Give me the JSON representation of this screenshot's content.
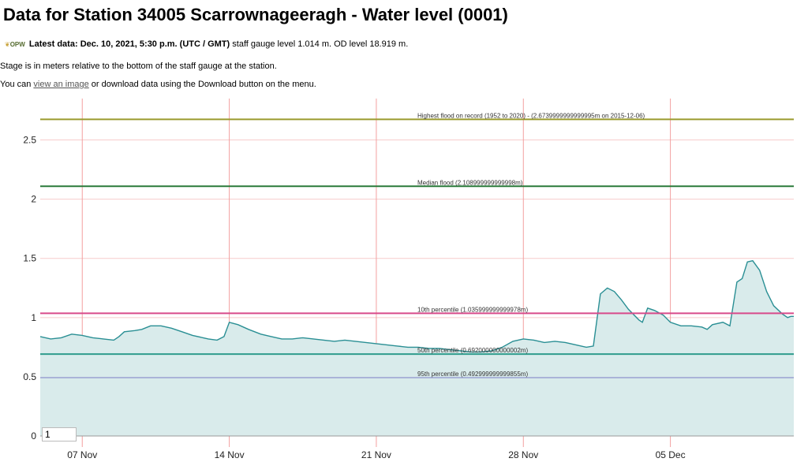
{
  "page": {
    "title": "Data for Station 34005 Scarrownageeragh - Water level (0001)",
    "logo_text": "OPW",
    "latest_label": "Latest data:",
    "latest_time": "Dec. 10, 2021, 5:30 p.m. (UTC / GMT)",
    "latest_rest": "staff gauge level 1.014 m. OD level 18.919 m.",
    "stage_note": "Stage is in meters relative to the bottom of the staff gauge at the station.",
    "download_prefix": "You can ",
    "download_link": "view an image",
    "download_suffix": " or download data using the Download button on the menu.",
    "range_input_value": "1"
  },
  "colors": {
    "series_line": "#2a8f94",
    "series_fill": "#d9ebeb",
    "highest_flood": "#9a9a2e",
    "median_flood": "#2a7a3a",
    "p10": "#d84a8a",
    "p50": "#2f9c8c",
    "p95": "#aab4d8",
    "grid_vertical": "#f2a0a0",
    "grid_horizontal": "#f7cccc"
  },
  "chart_data": {
    "type": "area",
    "x_start": "2021-11-05",
    "x_end": "2021-12-10T21:00",
    "xticks": [
      {
        "label": "07 Nov",
        "x": "2021-11-07"
      },
      {
        "label": "14 Nov",
        "x": "2021-11-14"
      },
      {
        "label": "21 Nov",
        "x": "2021-11-21"
      },
      {
        "label": "28 Nov",
        "x": "2021-11-28"
      },
      {
        "label": "05 Dec",
        "x": "2021-12-05"
      }
    ],
    "ylim": [
      0,
      2.85
    ],
    "yticks": [
      0,
      0.5,
      1,
      1.5,
      2,
      2.5
    ],
    "ytick_labels": [
      "0",
      "0.5",
      "1",
      "1.5",
      "2",
      "2.5"
    ],
    "grid": true,
    "thresholds": [
      {
        "label": "Highest flood on record (1952 to 2020) - (2.6739999999999995m on 2015-12-06)",
        "value": 2.674,
        "color_key": "highest_flood"
      },
      {
        "label": "Median flood (2.108999999999998m)",
        "value": 2.109,
        "color_key": "median_flood"
      },
      {
        "label": "10th percentile (1.035999999999978m)",
        "value": 1.036,
        "color_key": "p10"
      },
      {
        "label": "50th percentile (0.692000000000002m)",
        "value": 0.692,
        "color_key": "p50"
      },
      {
        "label": "95th percentile (0.492999999999855m)",
        "value": 0.493,
        "color_key": "p95"
      }
    ],
    "series": [
      {
        "points": [
          [
            "2021-11-05T00:00",
            0.84
          ],
          [
            "2021-11-05T12:00",
            0.82
          ],
          [
            "2021-11-06T00:00",
            0.83
          ],
          [
            "2021-11-06T12:00",
            0.86
          ],
          [
            "2021-11-07T00:00",
            0.85
          ],
          [
            "2021-11-07T12:00",
            0.83
          ],
          [
            "2021-11-08T00:00",
            0.82
          ],
          [
            "2021-11-08T12:00",
            0.81
          ],
          [
            "2021-11-08T18:00",
            0.84
          ],
          [
            "2021-11-09T00:00",
            0.88
          ],
          [
            "2021-11-09T12:00",
            0.89
          ],
          [
            "2021-11-09T20:00",
            0.9
          ],
          [
            "2021-11-10T06:00",
            0.93
          ],
          [
            "2021-11-10T18:00",
            0.93
          ],
          [
            "2021-11-11T06:00",
            0.91
          ],
          [
            "2021-11-11T18:00",
            0.88
          ],
          [
            "2021-11-12T06:00",
            0.85
          ],
          [
            "2021-11-12T18:00",
            0.83
          ],
          [
            "2021-11-13T00:00",
            0.82
          ],
          [
            "2021-11-13T10:00",
            0.81
          ],
          [
            "2021-11-13T18:00",
            0.84
          ],
          [
            "2021-11-14T00:00",
            0.96
          ],
          [
            "2021-11-14T10:00",
            0.94
          ],
          [
            "2021-11-14T22:00",
            0.9
          ],
          [
            "2021-11-15T12:00",
            0.86
          ],
          [
            "2021-11-16T00:00",
            0.84
          ],
          [
            "2021-11-16T12:00",
            0.82
          ],
          [
            "2021-11-17T00:00",
            0.82
          ],
          [
            "2021-11-17T12:00",
            0.83
          ],
          [
            "2021-11-18T00:00",
            0.82
          ],
          [
            "2021-11-18T12:00",
            0.81
          ],
          [
            "2021-11-19T00:00",
            0.8
          ],
          [
            "2021-11-19T12:00",
            0.81
          ],
          [
            "2021-11-20T00:00",
            0.8
          ],
          [
            "2021-11-20T12:00",
            0.79
          ],
          [
            "2021-11-21T00:00",
            0.78
          ],
          [
            "2021-11-21T12:00",
            0.77
          ],
          [
            "2021-11-22T00:00",
            0.76
          ],
          [
            "2021-11-22T12:00",
            0.75
          ],
          [
            "2021-11-23T00:00",
            0.75
          ],
          [
            "2021-11-23T12:00",
            0.74
          ],
          [
            "2021-11-24T00:00",
            0.74
          ],
          [
            "2021-11-24T12:00",
            0.73
          ],
          [
            "2021-11-25T00:00",
            0.72
          ],
          [
            "2021-11-25T12:00",
            0.71
          ],
          [
            "2021-11-26T00:00",
            0.71
          ],
          [
            "2021-11-26T12:00",
            0.72
          ],
          [
            "2021-11-27T00:00",
            0.75
          ],
          [
            "2021-11-27T12:00",
            0.8
          ],
          [
            "2021-11-28T00:00",
            0.82
          ],
          [
            "2021-11-28T12:00",
            0.81
          ],
          [
            "2021-11-29T00:00",
            0.79
          ],
          [
            "2021-11-29T12:00",
            0.8
          ],
          [
            "2021-11-30T00:00",
            0.79
          ],
          [
            "2021-11-30T12:00",
            0.77
          ],
          [
            "2021-12-01T00:00",
            0.75
          ],
          [
            "2021-12-01T08:00",
            0.76
          ],
          [
            "2021-12-01T16:00",
            1.2
          ],
          [
            "2021-12-02T00:00",
            1.25
          ],
          [
            "2021-12-02T08:00",
            1.22
          ],
          [
            "2021-12-02T16:00",
            1.15
          ],
          [
            "2021-12-03T00:00",
            1.07
          ],
          [
            "2021-12-03T12:00",
            0.98
          ],
          [
            "2021-12-03T16:00",
            0.96
          ],
          [
            "2021-12-03T22:00",
            1.08
          ],
          [
            "2021-12-04T06:00",
            1.06
          ],
          [
            "2021-12-04T16:00",
            1.02
          ],
          [
            "2021-12-05T00:00",
            0.96
          ],
          [
            "2021-12-05T12:00",
            0.93
          ],
          [
            "2021-12-06T00:00",
            0.93
          ],
          [
            "2021-12-06T12:00",
            0.92
          ],
          [
            "2021-12-06T18:00",
            0.9
          ],
          [
            "2021-12-07T00:00",
            0.94
          ],
          [
            "2021-12-07T12:00",
            0.96
          ],
          [
            "2021-12-07T20:00",
            0.93
          ],
          [
            "2021-12-08T04:00",
            1.3
          ],
          [
            "2021-12-08T10:00",
            1.33
          ],
          [
            "2021-12-08T16:00",
            1.47
          ],
          [
            "2021-12-08T22:00",
            1.48
          ],
          [
            "2021-12-09T06:00",
            1.4
          ],
          [
            "2021-12-09T14:00",
            1.22
          ],
          [
            "2021-12-09T22:00",
            1.1
          ],
          [
            "2021-12-10T08:00",
            1.03
          ],
          [
            "2021-12-10T14:00",
            1.0
          ],
          [
            "2021-12-10T17:30",
            1.01
          ],
          [
            "2021-12-10T21:00",
            1.01
          ]
        ]
      }
    ]
  }
}
